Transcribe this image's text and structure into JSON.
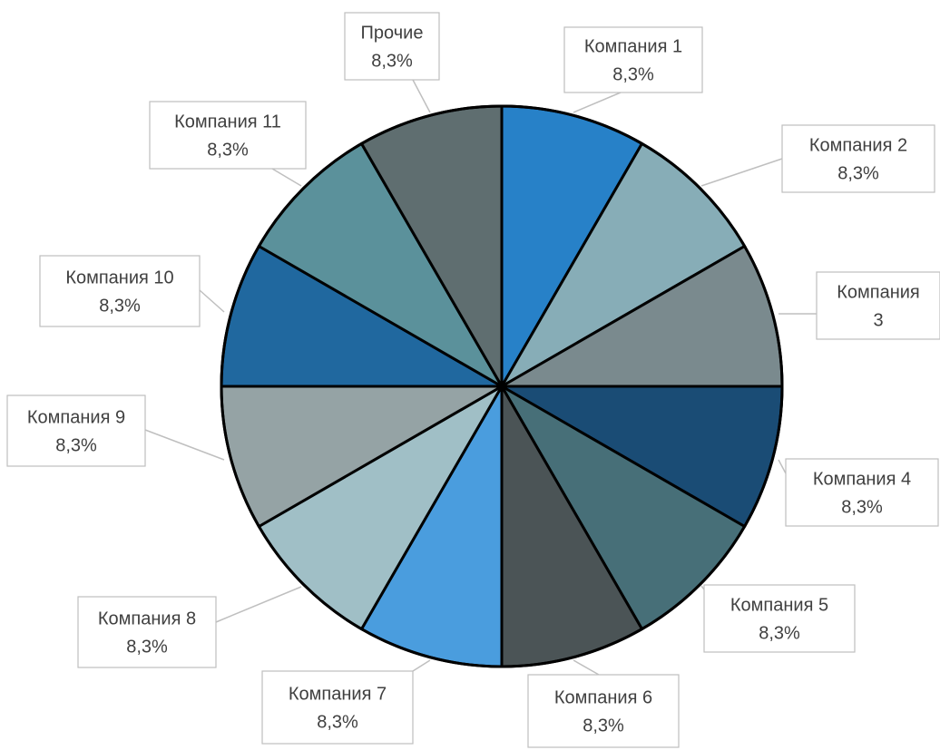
{
  "chart_data": {
    "type": "pie",
    "start_angle_deg": 0,
    "direction": "clockwise",
    "slices": [
      {
        "label": "Компания 1",
        "value": 8.3,
        "value_label": "8,3%",
        "color": "#2781c8"
      },
      {
        "label": "Компания 2",
        "value": 8.3,
        "value_label": "8,3%",
        "color": "#87adb7"
      },
      {
        "label": "Компания 3",
        "value": 8.3,
        "value_label": "",
        "color": "#7a8a8e"
      },
      {
        "label": "Компания 4",
        "value": 8.3,
        "value_label": "8,3%",
        "color": "#1a4c75"
      },
      {
        "label": "Компания 5",
        "value": 8.3,
        "value_label": "8,3%",
        "color": "#476f78"
      },
      {
        "label": "Компания 6",
        "value": 8.3,
        "value_label": "8,3%",
        "color": "#4b5456"
      },
      {
        "label": "Компания 7",
        "value": 8.3,
        "value_label": "8,3%",
        "color": "#4a9dde"
      },
      {
        "label": "Компания 8",
        "value": 8.3,
        "value_label": "8,3%",
        "color": "#a0bfc6"
      },
      {
        "label": "Компания 9",
        "value": 8.3,
        "value_label": "8,3%",
        "color": "#95a3a5"
      },
      {
        "label": "Компания 10",
        "value": 8.3,
        "value_label": "8,3%",
        "color": "#20689f"
      },
      {
        "label": "Компания 11",
        "value": 8.3,
        "value_label": "8,3%",
        "color": "#5b919b"
      },
      {
        "label": "Прочие",
        "value": 8.3,
        "value_label": "8,3%",
        "color": "#5f6e70"
      }
    ]
  }
}
